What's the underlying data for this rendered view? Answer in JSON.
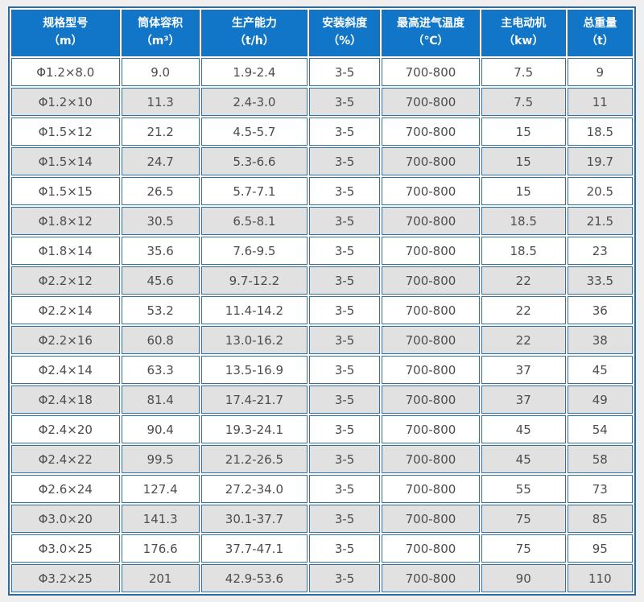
{
  "table": {
    "columns": [
      {
        "label": "规格型号",
        "unit": "（m）"
      },
      {
        "label": "筒体容积",
        "unit": "（m³）"
      },
      {
        "label": "生产能力",
        "unit": "（t/h）"
      },
      {
        "label": "安装斜度",
        "unit": "（%）"
      },
      {
        "label": "最高进气温度",
        "unit": "（℃）"
      },
      {
        "label": "主电动机",
        "unit": "（kw）"
      },
      {
        "label": "总重量",
        "unit": "（t）"
      }
    ],
    "rows": [
      [
        "Φ1.2×8.0",
        "9.0",
        "1.9-2.4",
        "3-5",
        "700-800",
        "7.5",
        "9"
      ],
      [
        "Φ1.2×10",
        "11.3",
        "2.4-3.0",
        "3-5",
        "700-800",
        "7.5",
        "11"
      ],
      [
        "Φ1.5×12",
        "21.2",
        "4.5-5.7",
        "3-5",
        "700-800",
        "15",
        "18.5"
      ],
      [
        "Φ1.5×14",
        "24.7",
        "5.3-6.6",
        "3-5",
        "700-800",
        "15",
        "19.7"
      ],
      [
        "Φ1.5×15",
        "26.5",
        "5.7-7.1",
        "3-5",
        "700-800",
        "15",
        "20.5"
      ],
      [
        "Φ1.8×12",
        "30.5",
        "6.5-8.1",
        "3-5",
        "700-800",
        "18.5",
        "21.5"
      ],
      [
        "Φ1.8×14",
        "35.6",
        "7.6-9.5",
        "3-5",
        "700-800",
        "18.5",
        "23"
      ],
      [
        "Φ2.2×12",
        "45.6",
        "9.7-12.2",
        "3-5",
        "700-800",
        "22",
        "33.5"
      ],
      [
        "Φ2.2×14",
        "53.2",
        "11.4-14.2",
        "3-5",
        "700-800",
        "22",
        "36"
      ],
      [
        "Φ2.2×16",
        "60.8",
        "13.0-16.2",
        "3-5",
        "700-800",
        "22",
        "38"
      ],
      [
        "Φ2.4×14",
        "63.3",
        "13.5-16.9",
        "3-5",
        "700-800",
        "37",
        "45"
      ],
      [
        "Φ2.4×18",
        "81.4",
        "17.4-21.7",
        "3-5",
        "700-800",
        "37",
        "49"
      ],
      [
        "Φ2.4×20",
        "90.4",
        "19.3-24.1",
        "3-5",
        "700-800",
        "45",
        "54"
      ],
      [
        "Φ2.4×22",
        "99.5",
        "21.2-26.5",
        "3-5",
        "700-800",
        "45",
        "58"
      ],
      [
        "Φ2.6×24",
        "127.4",
        "27.2-34.0",
        "3-5",
        "700-800",
        "55",
        "73"
      ],
      [
        "Φ3.0×20",
        "141.3",
        "30.1-37.7",
        "3-5",
        "700-800",
        "75",
        "85"
      ],
      [
        "Φ3.0×25",
        "176.6",
        "37.7-47.1",
        "3-5",
        "700-800",
        "75",
        "95"
      ],
      [
        "Φ3.2×25",
        "201",
        "42.9-53.6",
        "3-5",
        "700-800",
        "90",
        "110"
      ]
    ]
  },
  "colors": {
    "header_bg": "#1176c8",
    "header_text": "#ffffff",
    "cell_border": "#31719f",
    "outer_border": "#2a6a9d",
    "row_alt_bg": "#e2e1e2",
    "row_bg": "#ffffff",
    "cell_text": "#4c4c4c",
    "page_bg": "#f0eff0"
  }
}
